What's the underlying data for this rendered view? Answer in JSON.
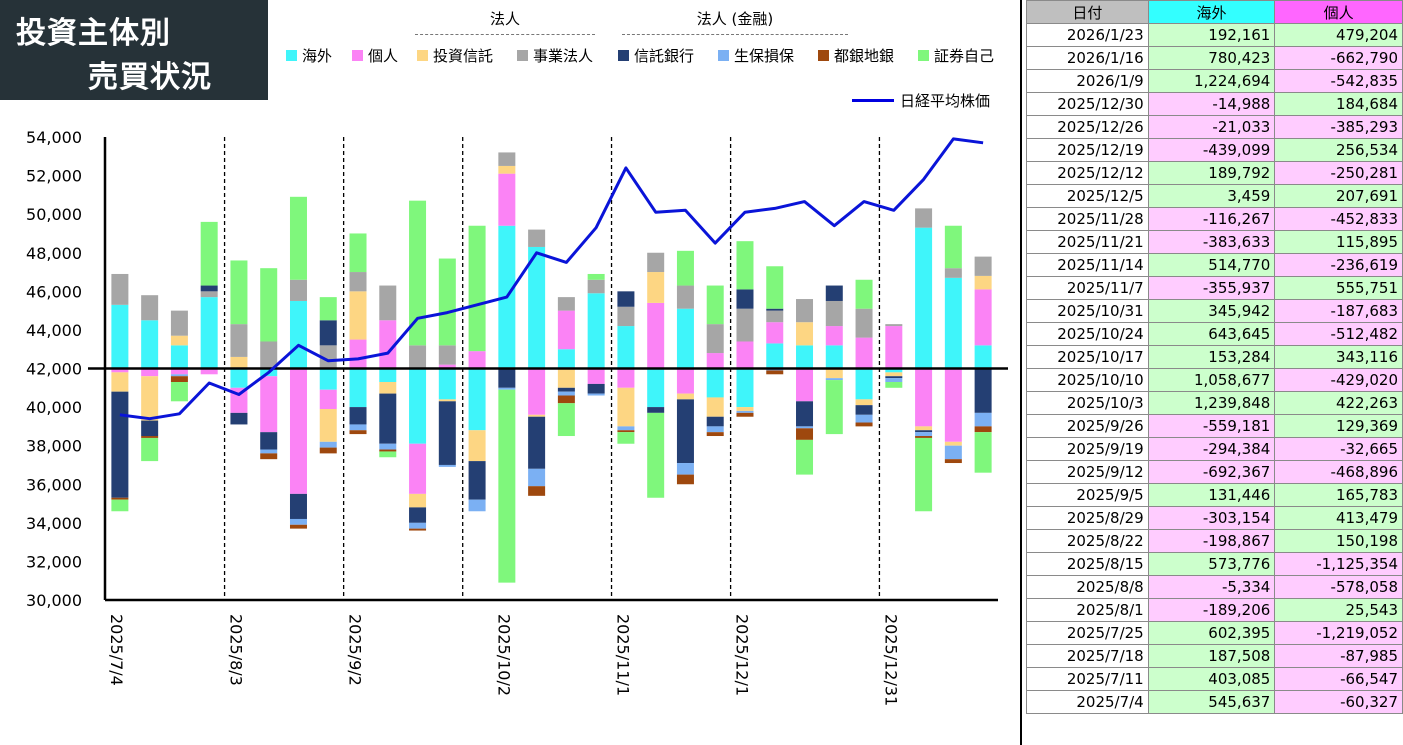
{
  "title": {
    "line1": "投資主体別",
    "line2": "売買状況"
  },
  "groups": {
    "corp": "法人",
    "corp_fin": "法人 (金融)"
  },
  "legend": [
    {
      "key": "kaigai",
      "label": "海外",
      "color": "#3ff5fa"
    },
    {
      "key": "kojin",
      "label": "個人",
      "color": "#fb83f5"
    },
    {
      "key": "toushin",
      "label": "投資信託",
      "color": "#fdd683"
    },
    {
      "key": "jigyou",
      "label": "事業法人",
      "color": "#a6a6a6"
    },
    {
      "key": "shintaku",
      "label": "信託銀行",
      "color": "#243f73"
    },
    {
      "key": "seiho",
      "label": "生保損保",
      "color": "#7bb0f3"
    },
    {
      "key": "toshigin",
      "label": "都銀地銀",
      "color": "#9e480e"
    },
    {
      "key": "shouken",
      "label": "証券自己",
      "color": "#7ff77c"
    }
  ],
  "nikkei_label": "日経平均株価",
  "chart_data": {
    "type": "bar",
    "title": "投資主体別 売買状況",
    "ylim": [
      30000,
      54000
    ],
    "yticks": [
      "30,000",
      "32,000",
      "34,000",
      "36,000",
      "38,000",
      "40,000",
      "42,000",
      "44,000",
      "46,000",
      "48,000",
      "50,000",
      "52,000",
      "54,000"
    ],
    "baseline": 42000,
    "xticks": [
      "2025/7/4",
      "2025/8/3",
      "2025/9/2",
      "2025/10/2",
      "2025/11/1",
      "2025/12/1",
      "2025/12/31"
    ],
    "weeks": [
      "2025/7/4",
      "2025/7/11",
      "2025/7/18",
      "2025/7/25",
      "2025/8/1",
      "2025/8/8",
      "2025/8/15",
      "2025/8/22",
      "2025/8/29",
      "2025/9/5",
      "2025/9/12",
      "2025/9/19",
      "2025/9/26",
      "2025/10/3",
      "2025/10/10",
      "2025/10/17",
      "2025/10/24",
      "2025/10/31",
      "2025/11/7",
      "2025/11/14",
      "2025/11/21",
      "2025/11/28",
      "2025/12/5",
      "2025/12/12",
      "2025/12/19",
      "2025/12/26",
      "2025/12/30",
      "2026/1/9",
      "2026/1/16",
      "2026/1/23"
    ],
    "nikkei": [
      39600,
      39400,
      39650,
      41250,
      40650,
      41800,
      43200,
      42400,
      42500,
      42800,
      44600,
      44900,
      45300,
      45700,
      48000,
      47500,
      49300,
      52400,
      50100,
      50200,
      48500,
      50100,
      50300,
      50650,
      49400,
      50650,
      50200,
      51800,
      53900,
      53700
    ],
    "flows_scaled": [
      [
        3300,
        -200,
        -1000,
        1600,
        -5500,
        0,
        -100,
        -600
      ],
      [
        2500,
        -400,
        -2300,
        1300,
        -800,
        0,
        -100,
        -1200
      ],
      [
        1200,
        -300,
        500,
        1300,
        0,
        -100,
        -300,
        -1000
      ],
      [
        3700,
        -300,
        0,
        300,
        300,
        0,
        0,
        3300
      ],
      [
        -1000,
        -1300,
        600,
        1700,
        -600,
        0,
        0,
        3300
      ],
      [
        -400,
        -2900,
        0,
        1400,
        -900,
        -200,
        -300,
        3800
      ],
      [
        3500,
        -6500,
        0,
        1100,
        -1300,
        -300,
        -200,
        4300
      ],
      [
        -1100,
        -1000,
        -1700,
        1200,
        1300,
        -300,
        -300,
        1200
      ],
      [
        -2000,
        1500,
        2500,
        1000,
        -900,
        -300,
        -200,
        2000
      ],
      [
        -700,
        2500,
        -600,
        1800,
        -2600,
        -300,
        -100,
        -300
      ],
      [
        -3900,
        -2600,
        -700,
        1200,
        -800,
        -300,
        -100,
        7500
      ],
      [
        -1600,
        200,
        -100,
        1000,
        -3300,
        -100,
        0,
        4500
      ],
      [
        -3200,
        900,
        -1600,
        0,
        -2000,
        -600,
        0,
        6500
      ],
      [
        7400,
        2700,
        400,
        700,
        -1000,
        -100,
        0,
        -10000
      ],
      [
        6300,
        -2400,
        -100,
        900,
        -2700,
        -900,
        -500,
        0
      ],
      [
        1000,
        2000,
        -1000,
        700,
        -200,
        -200,
        -400,
        -1700
      ],
      [
        3900,
        -800,
        0,
        700,
        -500,
        -100,
        0,
        300
      ],
      [
        2200,
        -1000,
        -2000,
        1000,
        800,
        -200,
        -100,
        -600
      ],
      [
        -2000,
        3400,
        1600,
        1000,
        -300,
        0,
        0,
        -4400
      ],
      [
        3100,
        -1300,
        -300,
        1200,
        -3300,
        -600,
        -500,
        1800
      ],
      [
        -1500,
        800,
        -1000,
        1500,
        -500,
        -300,
        -200,
        2000
      ],
      [
        -2000,
        1400,
        -200,
        1700,
        1000,
        -100,
        -200,
        2500
      ],
      [
        1300,
        1100,
        0,
        600,
        100,
        -100,
        -200,
        2200
      ],
      [
        1200,
        -1700,
        1200,
        1200,
        -1300,
        -100,
        -600,
        -1800
      ],
      [
        1200,
        1000,
        -500,
        1300,
        800,
        -100,
        0,
        -2800
      ],
      [
        -1600,
        1600,
        -300,
        1500,
        -500,
        -400,
        -200,
        1500
      ],
      [
        -200,
        2200,
        -200,
        100,
        -100,
        -200,
        0,
        -300
      ],
      [
        7300,
        -3000,
        -200,
        1000,
        -100,
        -200,
        -100,
        -3800
      ],
      [
        4700,
        -3800,
        -200,
        500,
        0,
        -700,
        -200,
        2200
      ],
      [
        1200,
        2900,
        700,
        1000,
        -2300,
        -700,
        -300,
        -2100
      ]
    ]
  },
  "table": {
    "headers": [
      "日付",
      "海外",
      "個人"
    ],
    "rows": [
      [
        "2026/1/23",
        "192,161",
        "479,204"
      ],
      [
        "2026/1/16",
        "780,423",
        "-662,790"
      ],
      [
        "2026/1/9",
        "1,224,694",
        "-542,835"
      ],
      [
        "2025/12/30",
        "-14,988",
        "184,684"
      ],
      [
        "2025/12/26",
        "-21,033",
        "-385,293"
      ],
      [
        "2025/12/19",
        "-439,099",
        "256,534"
      ],
      [
        "2025/12/12",
        "189,792",
        "-250,281"
      ],
      [
        "2025/12/5",
        "3,459",
        "207,691"
      ],
      [
        "2025/11/28",
        "-116,267",
        "-452,833"
      ],
      [
        "2025/11/21",
        "-383,633",
        "115,895"
      ],
      [
        "2025/11/14",
        "514,770",
        "-236,619"
      ],
      [
        "2025/11/7",
        "-355,937",
        "555,751"
      ],
      [
        "2025/10/31",
        "345,942",
        "-187,683"
      ],
      [
        "2025/10/24",
        "643,645",
        "-512,482"
      ],
      [
        "2025/10/17",
        "153,284",
        "343,116"
      ],
      [
        "2025/10/10",
        "1,058,677",
        "-429,020"
      ],
      [
        "2025/10/3",
        "1,239,848",
        "422,263"
      ],
      [
        "2025/9/26",
        "-559,181",
        "129,369"
      ],
      [
        "2025/9/19",
        "-294,384",
        "-32,665"
      ],
      [
        "2025/9/12",
        "-692,367",
        "-468,896"
      ],
      [
        "2025/9/5",
        "131,446",
        "165,783"
      ],
      [
        "2025/8/29",
        "-303,154",
        "413,479"
      ],
      [
        "2025/8/22",
        "-198,867",
        "150,198"
      ],
      [
        "2025/8/15",
        "573,776",
        "-1,125,354"
      ],
      [
        "2025/8/8",
        "-5,334",
        "-578,058"
      ],
      [
        "2025/8/1",
        "-189,206",
        "25,543"
      ],
      [
        "2025/7/25",
        "602,395",
        "-1,219,052"
      ],
      [
        "2025/7/18",
        "187,508",
        "-87,985"
      ],
      [
        "2025/7/11",
        "403,085",
        "-66,547"
      ],
      [
        "2025/7/4",
        "545,637",
        "-60,327"
      ]
    ]
  }
}
